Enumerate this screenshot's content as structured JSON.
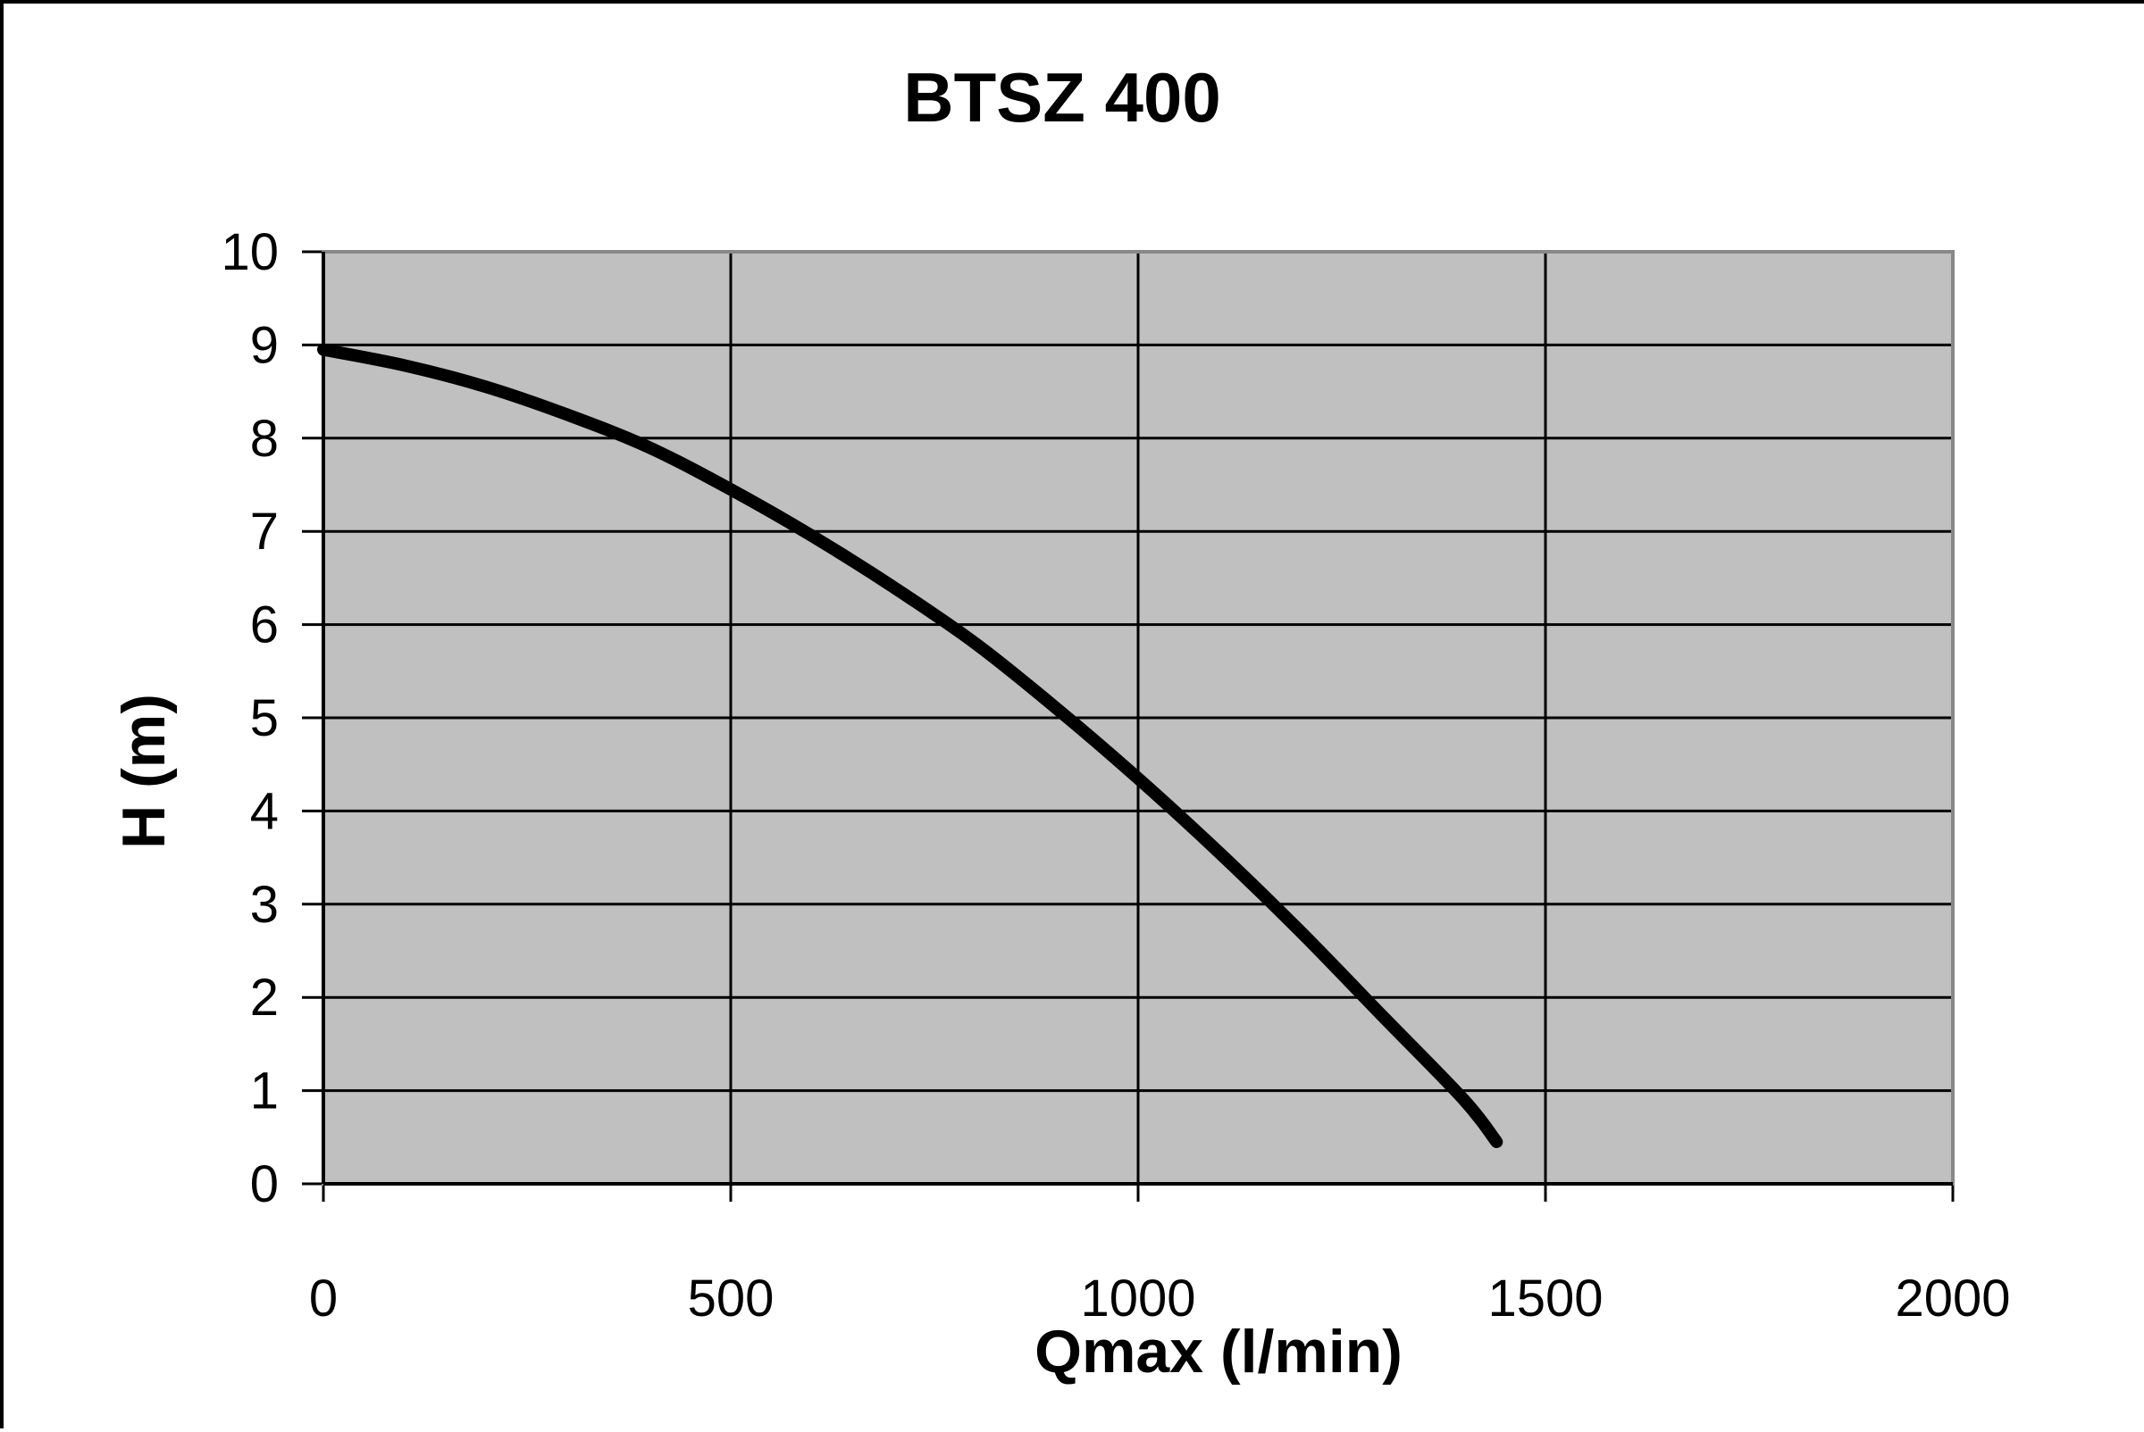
{
  "chart_data": {
    "type": "line",
    "title": "BTSZ 400",
    "xlabel": "Qmax (l/min)",
    "ylabel": "H (m)",
    "xlim": [
      0,
      2000
    ],
    "ylim": [
      0,
      10
    ],
    "xticks": [
      "0",
      "500",
      "1000",
      "1500",
      "2000"
    ],
    "yticks": [
      "0",
      "1",
      "2",
      "3",
      "4",
      "5",
      "6",
      "7",
      "8",
      "9",
      "10"
    ],
    "grid": true,
    "legend": "none",
    "plot_background": "#c0c0c0",
    "line_color": "#000000",
    "series": [
      {
        "x": [
          0,
          100,
          200,
          300,
          400,
          500,
          600,
          700,
          800,
          900,
          1000,
          1100,
          1200,
          1300,
          1400,
          1440
        ],
        "values": [
          8.95,
          8.78,
          8.55,
          8.25,
          7.9,
          7.45,
          6.95,
          6.4,
          5.8,
          5.1,
          4.35,
          3.55,
          2.7,
          1.8,
          0.9,
          0.45
        ]
      }
    ]
  }
}
